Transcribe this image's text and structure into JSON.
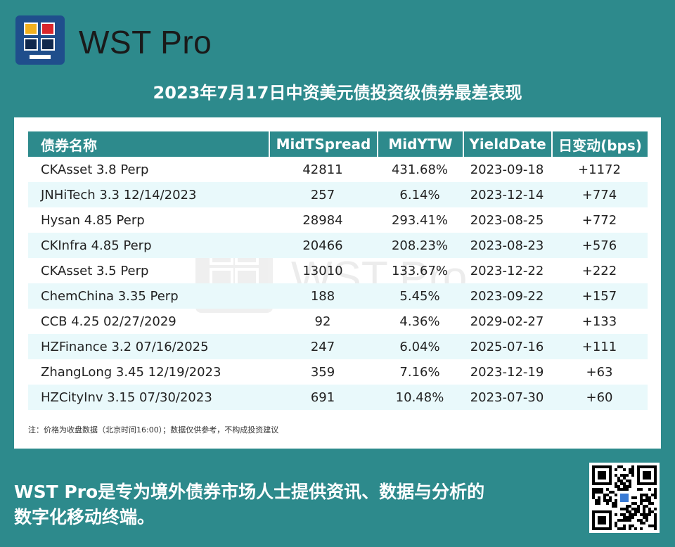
{
  "brand": {
    "name": "WST Pro"
  },
  "headline": "2023年7月17日中资美元债投资级债券最差表现",
  "table": {
    "headers": [
      "债券名称",
      "MidTSpread",
      "MidYTW",
      "YieldDate",
      "日变动(bps)"
    ],
    "rows": [
      [
        "CKAsset 3.8 Perp",
        "42811",
        "431.68%",
        "2023-09-18",
        "+1172"
      ],
      [
        "JNHiTech 3.3 12/14/2023",
        "257",
        "6.14%",
        "2023-12-14",
        "+774"
      ],
      [
        "Hysan 4.85 Perp",
        "28984",
        "293.41%",
        "2023-08-25",
        "+772"
      ],
      [
        "CKInfra 4.85 Perp",
        "20466",
        "208.23%",
        "2023-08-23",
        "+576"
      ],
      [
        "CKAsset 3.5 Perp",
        "13010",
        "133.67%",
        "2023-12-22",
        "+222"
      ],
      [
        "ChemChina 3.35 Perp",
        "188",
        "5.45%",
        "2023-09-22",
        "+157"
      ],
      [
        "CCB 4.25 02/27/2029",
        "92",
        "4.36%",
        "2029-02-27",
        "+133"
      ],
      [
        "HZFinance 3.2 07/16/2025",
        "247",
        "6.04%",
        "2025-07-16",
        "+111"
      ],
      [
        "ZhangLong 3.45 12/19/2023",
        "359",
        "7.16%",
        "2023-12-19",
        "+63"
      ],
      [
        "HZCityInv 3.15 07/30/2023",
        "691",
        "10.48%",
        "2023-07-30",
        "+60"
      ]
    ]
  },
  "watermark": "WST Pro",
  "note": "注：价格为收盘数据（北京时间16:00）；数据仅供参考，不构成投资建议",
  "footer": {
    "line1": "WST Pro是专为境外债券市场人士提供资讯、数据与分析的",
    "line2": "数字化移动终端。"
  },
  "colors": {
    "background": "#2d8a8c",
    "header": "#2d8a8c",
    "row_alt": "#e9f9fb",
    "logo": "#1f4e8c"
  }
}
